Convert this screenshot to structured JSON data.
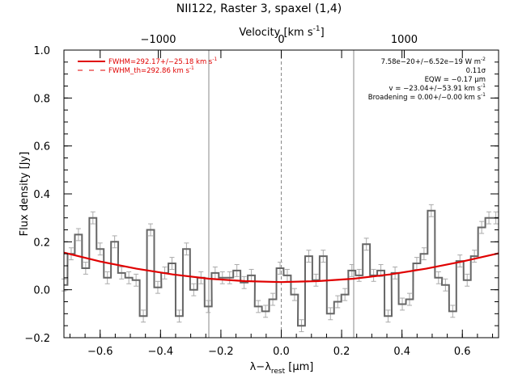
{
  "chart_data": {
    "type": "line",
    "title": "NII122, Raster 3, spaxel (1,4)",
    "xlabel_main": "λ−λ",
    "xlabel_sub": "rest",
    "xlabel_unit": " [μm]",
    "top_axis_label": "Velocity [km s",
    "top_axis_sup": "-1",
    "top_axis_close": "]",
    "ylabel": "Flux density [Jy]",
    "xlim": [
      -0.72,
      0.72
    ],
    "ylim": [
      -0.2,
      1.0
    ],
    "x_ticks": [
      -0.6,
      -0.4,
      -0.2,
      0.0,
      0.2,
      0.4,
      0.6
    ],
    "x_tick_labels": [
      "−0.6",
      "−0.4",
      "−0.2",
      "0.0",
      "0.2",
      "0.4",
      "0.6"
    ],
    "y_ticks": [
      -0.2,
      0.0,
      0.2,
      0.4,
      0.6,
      0.8,
      1.0
    ],
    "y_tick_labels": [
      "−0.2",
      "0.0",
      "0.2",
      "0.4",
      "0.6",
      "0.8",
      "1.0"
    ],
    "top_ticks_velocity": [
      -1000,
      0,
      1000
    ],
    "top_tick_labels": [
      "−1000",
      "0",
      "1000"
    ],
    "velocity_per_micron": 2454,
    "vertical_lines": [
      -0.24,
      0.0,
      0.24
    ],
    "series": [
      {
        "name": "spectrum",
        "step_width": 0.0238,
        "x": [
          -0.72,
          -0.696,
          -0.672,
          -0.648,
          -0.624,
          -0.6,
          -0.576,
          -0.552,
          -0.529,
          -0.505,
          -0.481,
          -0.457,
          -0.433,
          -0.409,
          -0.386,
          -0.362,
          -0.338,
          -0.314,
          -0.29,
          -0.266,
          -0.242,
          -0.219,
          -0.195,
          -0.171,
          -0.147,
          -0.123,
          -0.099,
          -0.076,
          -0.052,
          -0.028,
          -0.004,
          0.02,
          0.044,
          0.067,
          0.091,
          0.115,
          0.139,
          0.163,
          0.187,
          0.211,
          0.234,
          0.258,
          0.282,
          0.306,
          0.33,
          0.354,
          0.377,
          0.401,
          0.425,
          0.449,
          0.473,
          0.497,
          0.521,
          0.544,
          0.568,
          0.592,
          0.616,
          0.64,
          0.664,
          0.688,
          0.711
        ],
        "y": [
          0.02,
          0.15,
          0.23,
          0.09,
          0.3,
          0.17,
          0.05,
          0.2,
          0.07,
          0.05,
          0.04,
          -0.11,
          0.25,
          0.01,
          0.07,
          0.11,
          -0.11,
          0.17,
          0.0,
          0.05,
          -0.07,
          0.07,
          0.05,
          0.05,
          0.08,
          0.03,
          0.06,
          -0.07,
          -0.09,
          -0.04,
          0.09,
          0.06,
          -0.02,
          -0.15,
          0.14,
          0.04,
          0.14,
          -0.1,
          -0.05,
          -0.02,
          0.08,
          0.06,
          0.19,
          0.06,
          0.08,
          -0.11,
          0.07,
          -0.06,
          -0.04,
          0.11,
          0.15,
          0.33,
          0.05,
          0.02,
          -0.09,
          0.12,
          0.04,
          0.14,
          0.26,
          0.3,
          0.3
        ],
        "err": 0.025
      },
      {
        "name": "fit",
        "x": [
          -0.72,
          -0.6,
          -0.48,
          -0.36,
          -0.24,
          -0.12,
          0.0,
          0.12,
          0.24,
          0.36,
          0.48,
          0.6,
          0.72
        ],
        "y": [
          0.155,
          0.118,
          0.088,
          0.064,
          0.046,
          0.036,
          0.032,
          0.036,
          0.046,
          0.064,
          0.088,
          0.118,
          0.152
        ]
      }
    ],
    "legend": {
      "placement": "top-left",
      "line1": "FWHM=292.17+/−25.18 km s",
      "line1_sup": "-1",
      "line2": "FWHM_th=292.86 km s",
      "line2_sup": "-1"
    },
    "annotations": {
      "placement": "top-right",
      "lines": [
        "7.58e−20+/−6.52e−19 W m",
        "0.11σ",
        "EQW = −0.17 μm",
        "v = −23.04+/−53.91 km s",
        "Broadening = 0.00+/−0.00 km s"
      ],
      "sups": [
        "-2",
        "",
        "",
        "-1",
        "-1"
      ]
    },
    "colors": {
      "fit": "#e00000",
      "spectrum": "#666666",
      "error_bars": "#aaaaaa",
      "markers": "#888888"
    }
  }
}
